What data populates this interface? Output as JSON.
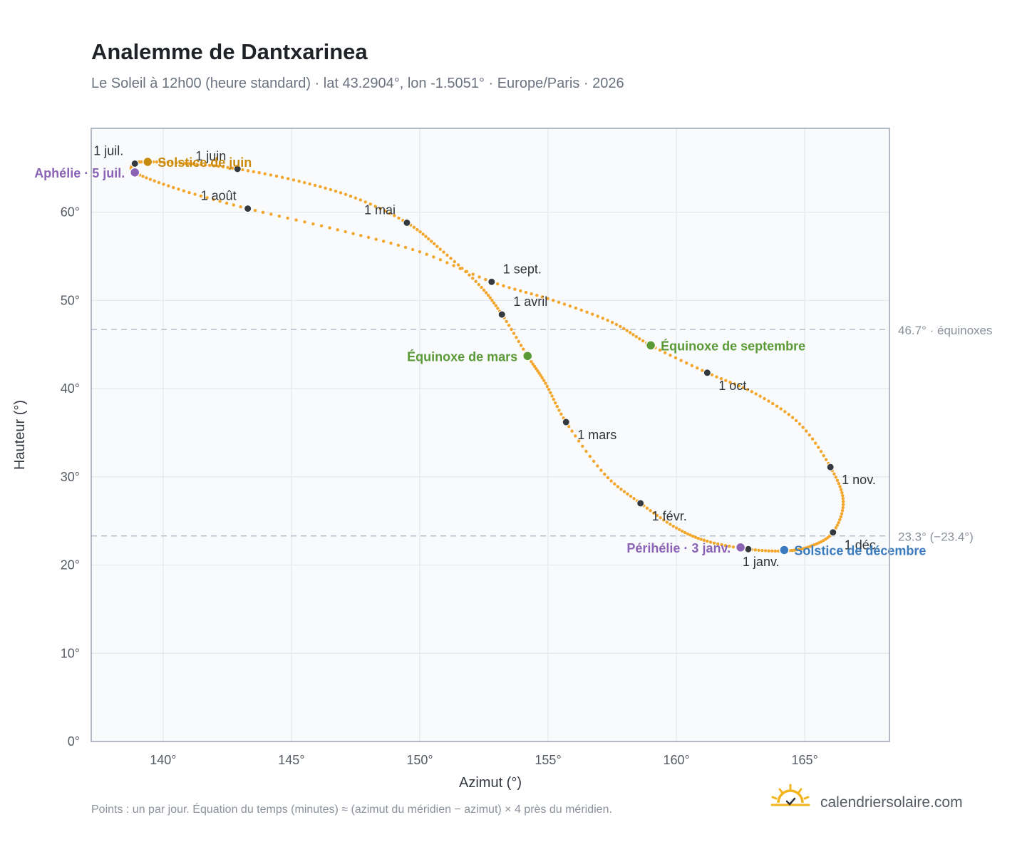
{
  "header": {
    "title": "Analemme de Dantxarinea",
    "subtitle": "Le Soleil à 12h00 (heure standard) · lat 43.2904°, lon -1.5051° · Europe/Paris · 2026"
  },
  "footer": {
    "note": "Points : un par jour. Équation du temps (minutes) ≈ (azimut du méridien − azimut) × 4 près du méridien.",
    "brand": "calendriersolaire.com",
    "logo_icon": "sun-check-icon"
  },
  "colors": {
    "curve": "#f2a62b",
    "month_dot": "#343a40",
    "aphelion": "#8b63b5",
    "solstice_june": "#c98a0e",
    "equinox": "#5a9a36",
    "solstice_december": "#3a7bbf",
    "plot_bg": "#f8fafc",
    "grid": "#e3e7ec",
    "reference_line": "#b8c0ca",
    "frame": "#9aa5b3"
  },
  "chart_data": {
    "type": "scatter",
    "title": "Analemme de Dantxarinea",
    "xlabel": "Azimut (°)",
    "ylabel": "Hauteur (°)",
    "xlim": [
      137.2,
      168.3
    ],
    "ylim": [
      0,
      69.5
    ],
    "xticks": [
      140,
      145,
      150,
      155,
      160,
      165
    ],
    "yticks": [
      0,
      10,
      20,
      30,
      40,
      50,
      60
    ],
    "tick_format": "{v}°",
    "grid": true,
    "legend": "none",
    "analemma_path": [
      [
        162.8,
        21.8
      ],
      [
        161.2,
        22.7
      ],
      [
        160.0,
        24.2
      ],
      [
        158.6,
        27.0
      ],
      [
        157.2,
        30.3
      ],
      [
        155.7,
        36.2
      ],
      [
        154.9,
        40.6
      ],
      [
        154.2,
        43.7
      ],
      [
        153.2,
        48.4
      ],
      [
        152.3,
        51.8
      ],
      [
        150.8,
        55.8
      ],
      [
        149.5,
        58.8
      ],
      [
        147.5,
        61.6
      ],
      [
        145.3,
        63.5
      ],
      [
        142.9,
        64.9
      ],
      [
        141.0,
        65.5
      ],
      [
        139.4,
        65.7
      ],
      [
        138.9,
        65.5
      ],
      [
        138.9,
        64.5
      ],
      [
        140.6,
        62.6
      ],
      [
        143.3,
        60.4
      ],
      [
        146.8,
        58.0
      ],
      [
        150.0,
        55.5
      ],
      [
        152.8,
        52.1
      ],
      [
        155.2,
        50.0
      ],
      [
        157.5,
        47.5
      ],
      [
        159.0,
        44.9
      ],
      [
        161.2,
        41.8
      ],
      [
        163.1,
        39.4
      ],
      [
        164.8,
        36.0
      ],
      [
        166.0,
        31.1
      ],
      [
        166.5,
        27.2
      ],
      [
        166.1,
        23.7
      ],
      [
        165.2,
        22.1
      ],
      [
        164.2,
        21.6
      ],
      [
        162.8,
        21.8
      ]
    ],
    "month_markers": [
      {
        "label": "1 janv.",
        "azimuth": 162.8,
        "altitude": 21.8,
        "anchor": "below"
      },
      {
        "label": "1 févr.",
        "azimuth": 158.6,
        "altitude": 27.0,
        "anchor": "right-below"
      },
      {
        "label": "1 mars",
        "azimuth": 155.7,
        "altitude": 36.2,
        "anchor": "right-below"
      },
      {
        "label": "1 avril",
        "azimuth": 153.2,
        "altitude": 48.4,
        "anchor": "right-above"
      },
      {
        "label": "1 mai",
        "azimuth": 149.5,
        "altitude": 58.8,
        "anchor": "left-above"
      },
      {
        "label": "1 juin",
        "azimuth": 142.9,
        "altitude": 64.9,
        "anchor": "left-above"
      },
      {
        "label": "1 juil.",
        "azimuth": 138.9,
        "altitude": 65.5,
        "anchor": "left-above"
      },
      {
        "label": "1 août",
        "azimuth": 143.3,
        "altitude": 60.4,
        "anchor": "left-above"
      },
      {
        "label": "1 sept.",
        "azimuth": 152.8,
        "altitude": 52.1,
        "anchor": "right-above"
      },
      {
        "label": "1 oct.",
        "azimuth": 161.2,
        "altitude": 41.8,
        "anchor": "right-below"
      },
      {
        "label": "1 nov.",
        "azimuth": 166.0,
        "altitude": 31.1,
        "anchor": "right-below"
      },
      {
        "label": "1 déc.",
        "azimuth": 166.1,
        "altitude": 23.7,
        "anchor": "right-below"
      }
    ],
    "events": [
      {
        "label": "Aphélie · 5 juil.",
        "azimuth": 138.9,
        "altitude": 64.5,
        "color_key": "aphelion",
        "anchor": "left"
      },
      {
        "label": "Solstice de juin",
        "azimuth": 139.4,
        "altitude": 65.7,
        "color_key": "solstice_june",
        "anchor": "right"
      },
      {
        "label": "Équinoxe de mars",
        "azimuth": 154.2,
        "altitude": 43.7,
        "color_key": "equinox",
        "anchor": "left"
      },
      {
        "label": "Équinoxe de septembre",
        "azimuth": 159.0,
        "altitude": 44.9,
        "color_key": "equinox",
        "anchor": "right"
      },
      {
        "label": "Périhélie · 3 janv.",
        "azimuth": 162.5,
        "altitude": 22.0,
        "color_key": "aphelion",
        "anchor": "left"
      },
      {
        "label": "Solstice de décembre",
        "azimuth": 164.2,
        "altitude": 21.7,
        "color_key": "solstice_december",
        "anchor": "right"
      }
    ],
    "reference_lines": [
      {
        "altitude": 46.7,
        "label": "46.7° · équinoxes"
      },
      {
        "altitude": 23.3,
        "label": "23.3° (−23.4°)"
      }
    ]
  }
}
